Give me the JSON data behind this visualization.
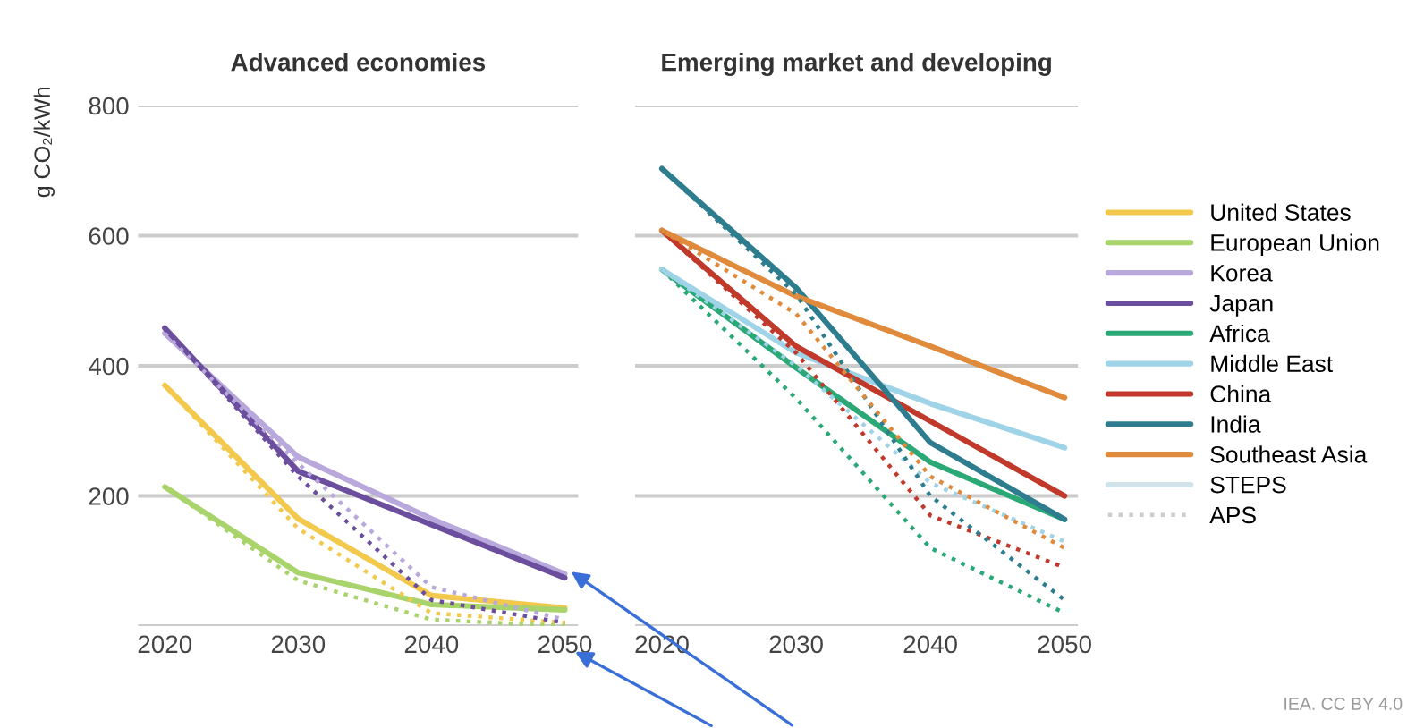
{
  "chart_data": [
    {
      "type": "line",
      "title": "Advanced economies",
      "ylabel": "g CO₂/kWh",
      "x": [
        2020,
        2030,
        2040,
        2050
      ],
      "xlim": [
        2018,
        2051
      ],
      "xticks": [
        2020,
        2030,
        2040,
        2050
      ],
      "ylim": [
        0,
        800
      ],
      "yticks": [
        {
          "value": 0,
          "label": null
        },
        200,
        400,
        600,
        800
      ],
      "grid": "y",
      "line_style": "solid",
      "legend": "right",
      "series": [
        {
          "name": "United States",
          "color": "#f2c94c",
          "values": [
            370,
            165,
            47,
            28
          ]
        },
        {
          "name": "European Union",
          "color": "#a9d36b",
          "values": [
            214,
            82,
            33,
            25
          ]
        },
        {
          "name": "Korea",
          "color": "#b9a8dc",
          "values": [
            450,
            260,
            165,
            80
          ]
        },
        {
          "name": "Japan",
          "color": "#6b4f9e",
          "values": [
            458,
            238,
            156,
            74
          ]
        },
        {
          "color": "#f2c94c",
          "values": [
            370,
            150,
            20,
            5
          ],
          "line_style": "dotted"
        },
        {
          "color": "#a9d36b",
          "values": [
            214,
            70,
            10,
            0
          ],
          "line_style": "dotted"
        },
        {
          "color": "#b9a8dc",
          "values": [
            450,
            250,
            60,
            10
          ],
          "line_style": "dotted"
        },
        {
          "color": "#6b4f9e",
          "values": [
            458,
            230,
            40,
            5
          ],
          "line_style": "dotted"
        }
      ]
    },
    {
      "type": "line",
      "title": "Emerging market and developing",
      "x": [
        2020,
        2030,
        2040,
        2050
      ],
      "xlim": [
        2018,
        2051
      ],
      "xticks": [
        2020,
        2030,
        2040,
        2050
      ],
      "ylim": [
        0,
        800
      ],
      "yticks": [
        {
          "value": 0,
          "label": null
        },
        200,
        400,
        600,
        800
      ],
      "grid": "y",
      "tick_labels": "x",
      "line_style": "solid",
      "legend": "right",
      "annotations": [
        "IEA. CC BY 4.0"
      ],
      "series": [
        {
          "name": "Africa",
          "color": "#2aa876",
          "values": [
            548,
            397,
            252,
            164
          ]
        },
        {
          "name": "Middle East",
          "color": "#9fd4e8",
          "values": [
            548,
            420,
            342,
            274
          ]
        },
        {
          "name": "China",
          "color": "#c0392b",
          "values": [
            608,
            430,
            315,
            200
          ]
        },
        {
          "name": "India",
          "color": "#2e7d8f",
          "values": [
            703,
            520,
            282,
            164
          ]
        },
        {
          "name": "Southeast Asia",
          "color": "#e08a3c",
          "values": [
            608,
            507,
            430,
            351
          ]
        },
        {
          "name": "STEPS",
          "color": "#cfe3e8",
          "values": [
            null,
            null,
            null,
            null
          ]
        },
        {
          "name": "APS",
          "color": "#cccccc",
          "values": [
            null,
            null,
            null,
            null
          ],
          "line_style": "dotted"
        },
        {
          "color": "#2aa876",
          "values": [
            548,
            350,
            120,
            20
          ],
          "line_style": "dotted"
        },
        {
          "color": "#9fd4e8",
          "values": [
            548,
            400,
            220,
            130
          ],
          "line_style": "dotted"
        },
        {
          "color": "#c0392b",
          "values": [
            608,
            420,
            170,
            90
          ],
          "line_style": "dotted"
        },
        {
          "color": "#2e7d8f",
          "values": [
            703,
            510,
            200,
            40
          ],
          "line_style": "dotted"
        },
        {
          "color": "#e08a3c",
          "values": [
            608,
            480,
            230,
            120
          ],
          "line_style": "dotted"
        }
      ]
    }
  ]
}
